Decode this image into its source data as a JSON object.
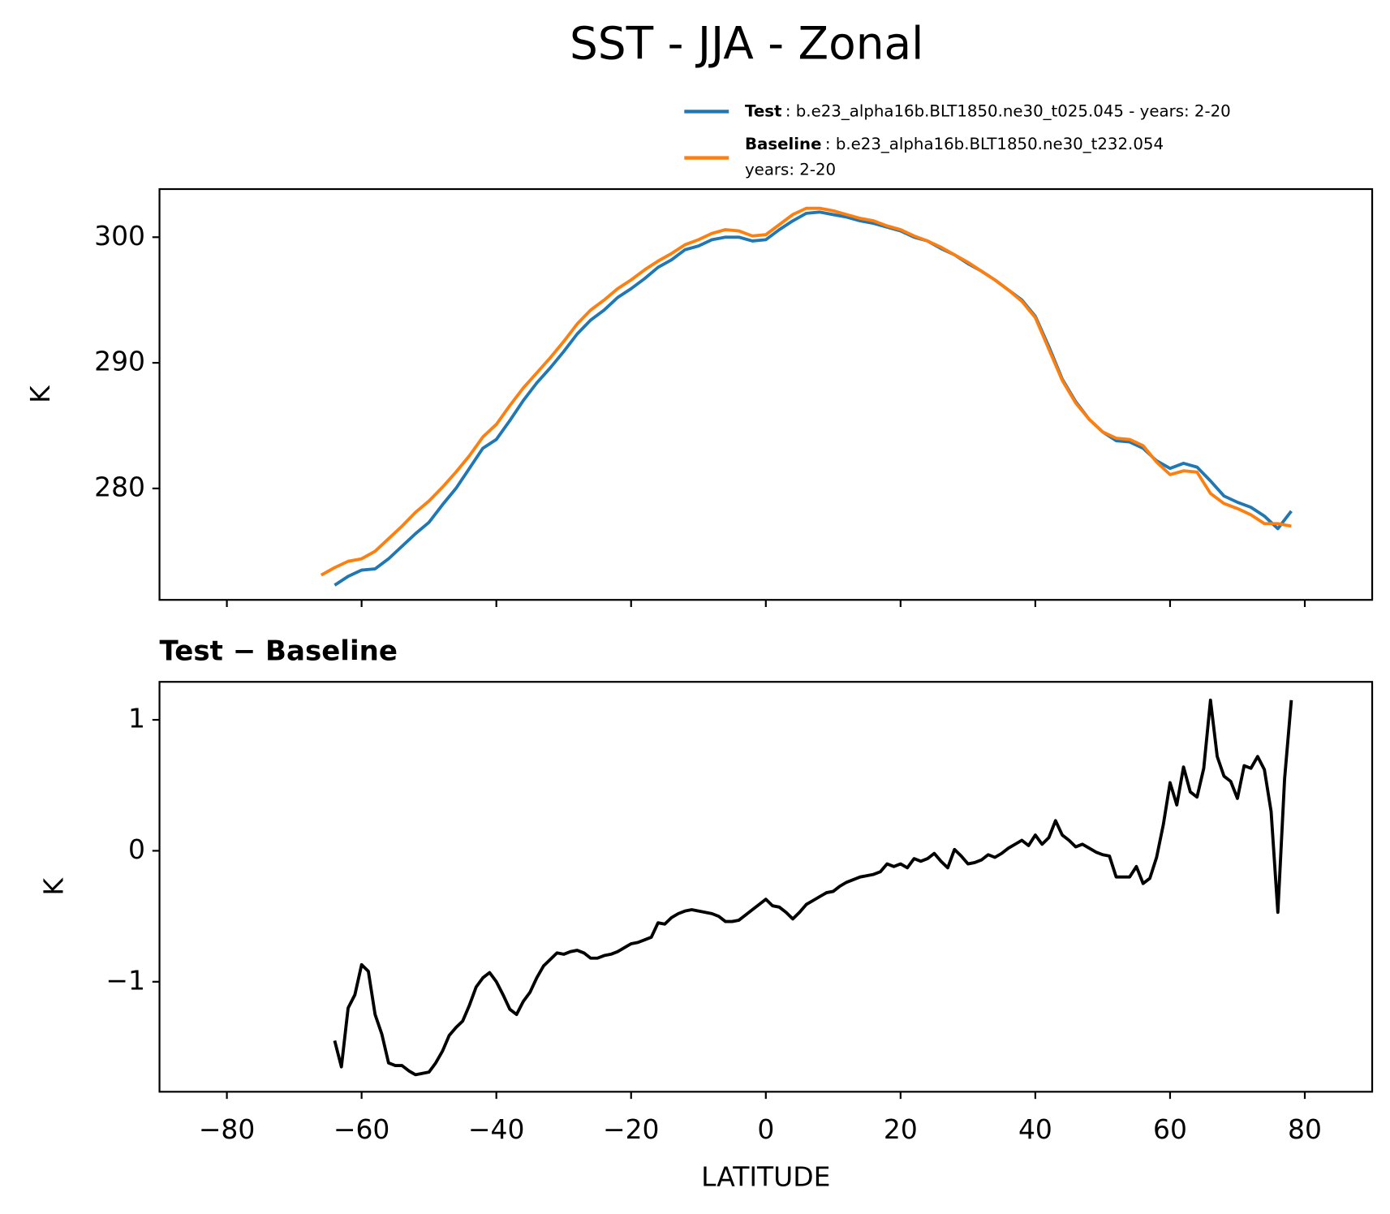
{
  "title": "SST - JJA - Zonal",
  "chart_data": [
    {
      "type": "line",
      "ylabel": "K",
      "legend": "above right",
      "show_xtick_labels": false,
      "xlim": [
        -90,
        90
      ],
      "ylim": [
        271.13,
        303.83
      ],
      "xticks": [
        -80,
        -60,
        -40,
        -20,
        0,
        20,
        40,
        60,
        80
      ],
      "yticks": [
        280,
        290,
        300
      ],
      "x": [
        -66,
        -64,
        -62,
        -60,
        -58,
        -56,
        -54,
        -52,
        -50,
        -48,
        -46,
        -44,
        -42,
        -40,
        -38,
        -36,
        -34,
        -32,
        -30,
        -28,
        -26,
        -24,
        -22,
        -20,
        -18,
        -16,
        -14,
        -12,
        -10,
        -8,
        -6,
        -4,
        -2,
        0,
        2,
        4,
        6,
        8,
        10,
        12,
        14,
        16,
        18,
        20,
        22,
        24,
        26,
        28,
        30,
        32,
        34,
        36,
        38,
        40,
        42,
        44,
        46,
        48,
        50,
        52,
        54,
        56,
        58,
        60,
        62,
        64,
        66,
        68,
        70,
        72,
        74,
        76,
        78
      ],
      "series": [
        {
          "name": "Test",
          "description": [
            ": b.e23_alpha16b.BLT1850.ne30_t025.045 - years: 2-20"
          ],
          "color": "#1f77b4",
          "values": [
            null,
            272.3,
            273.0,
            273.5,
            273.6,
            274.4,
            275.4,
            276.4,
            277.3,
            278.7,
            280.0,
            281.6,
            283.2,
            283.9,
            285.4,
            287.0,
            288.4,
            289.6,
            290.9,
            292.3,
            293.4,
            294.2,
            295.2,
            295.9,
            296.7,
            297.6,
            298.2,
            299.0,
            299.3,
            299.8,
            300.0,
            300.0,
            299.7,
            299.8,
            300.6,
            301.3,
            301.9,
            302.0,
            301.8,
            301.6,
            301.3,
            301.1,
            300.8,
            300.5,
            300.0,
            299.7,
            299.1,
            298.6,
            297.9,
            297.3,
            296.6,
            295.8,
            295.0,
            293.7,
            291.3,
            288.7,
            286.9,
            285.5,
            284.5,
            283.8,
            283.7,
            283.2,
            282.2,
            281.6,
            282.0,
            281.7,
            280.6,
            279.4,
            278.9,
            278.5,
            277.8,
            276.8,
            278.2
          ]
        },
        {
          "name": "Baseline",
          "description": [
            ": b.e23_alpha16b.BLT1850.ne30_t232.054",
            "years: 2-20"
          ],
          "color": "#ff7f0e",
          "values": [
            273.1,
            273.7,
            274.2,
            274.4,
            275.0,
            276.0,
            277.0,
            278.1,
            279.0,
            280.1,
            281.3,
            282.6,
            284.1,
            285.1,
            286.6,
            288.0,
            289.2,
            290.4,
            291.7,
            293.1,
            294.2,
            295.0,
            295.9,
            296.6,
            297.4,
            298.1,
            298.7,
            299.4,
            299.8,
            300.3,
            300.6,
            300.5,
            300.1,
            300.2,
            301.0,
            301.8,
            302.3,
            302.3,
            302.1,
            301.8,
            301.5,
            301.3,
            300.9,
            300.6,
            300.1,
            299.7,
            299.2,
            298.6,
            298.0,
            297.3,
            296.6,
            295.8,
            294.9,
            293.6,
            291.1,
            288.6,
            286.8,
            285.5,
            284.5,
            284.0,
            283.9,
            283.4,
            282.1,
            281.1,
            281.4,
            281.3,
            279.6,
            278.8,
            278.4,
            277.9,
            277.2,
            277.2,
            277.0
          ]
        }
      ]
    },
    {
      "type": "line",
      "title": "Test − Baseline",
      "ylabel": "K",
      "xlabel": "LATITUDE",
      "xlim": [
        -90,
        90
      ],
      "ylim": [
        -1.84,
        1.29
      ],
      "xticks": [
        {
          "value": -80,
          "label": "−80"
        },
        {
          "value": -60,
          "label": "−60"
        },
        {
          "value": -40,
          "label": "−40"
        },
        {
          "value": -20,
          "label": "−20"
        },
        0,
        20,
        40,
        60,
        80
      ],
      "yticks": [
        {
          "value": -1,
          "label": "−1"
        },
        0,
        1
      ],
      "x": [
        -64,
        -63,
        -62,
        -61,
        -60,
        -59,
        -58,
        -57,
        -56,
        -55,
        -54,
        -53,
        -52,
        -51,
        -50,
        -49,
        -48,
        -47,
        -46,
        -45,
        -44,
        -43,
        -42,
        -41,
        -40,
        -39,
        -38,
        -37,
        -36,
        -35,
        -34,
        -33,
        -32,
        -31,
        -30,
        -29,
        -28,
        -27,
        -26,
        -25,
        -24,
        -23,
        -22,
        -21,
        -20,
        -19,
        -18,
        -17,
        -16,
        -15,
        -14,
        -13,
        -12,
        -11,
        -10,
        -9,
        -8,
        -7,
        -6,
        -5,
        -4,
        -3,
        -2,
        -1,
        0,
        1,
        2,
        3,
        4,
        5,
        6,
        7,
        8,
        9,
        10,
        11,
        12,
        13,
        14,
        15,
        16,
        17,
        18,
        19,
        20,
        21,
        22,
        23,
        24,
        25,
        26,
        27,
        28,
        29,
        30,
        31,
        32,
        33,
        34,
        35,
        36,
        37,
        38,
        39,
        40,
        41,
        42,
        43,
        44,
        45,
        46,
        47,
        48,
        49,
        50,
        51,
        52,
        53,
        54,
        55,
        56,
        57,
        58,
        59,
        60,
        61,
        62,
        63,
        64,
        65,
        66,
        67,
        68,
        69,
        70,
        71,
        72,
        73,
        74,
        75,
        76,
        77,
        78
      ],
      "series": [
        {
          "color": "#000000",
          "values": [
            -1.45,
            -1.65,
            -1.2,
            -1.1,
            -0.87,
            -0.92,
            -1.25,
            -1.4,
            -1.62,
            -1.64,
            -1.64,
            -1.68,
            -1.71,
            -1.7,
            -1.69,
            -1.62,
            -1.53,
            -1.41,
            -1.35,
            -1.3,
            -1.18,
            -1.04,
            -0.97,
            -0.93,
            -1.0,
            -1.1,
            -1.21,
            -1.25,
            -1.15,
            -1.08,
            -0.97,
            -0.88,
            -0.83,
            -0.78,
            -0.79,
            -0.77,
            -0.76,
            -0.78,
            -0.82,
            -0.82,
            -0.8,
            -0.79,
            -0.77,
            -0.74,
            -0.71,
            -0.7,
            -0.68,
            -0.66,
            -0.55,
            -0.56,
            -0.51,
            -0.48,
            -0.46,
            -0.45,
            -0.46,
            -0.47,
            -0.48,
            -0.5,
            -0.54,
            -0.54,
            -0.53,
            -0.49,
            -0.45,
            -0.41,
            -0.37,
            -0.42,
            -0.43,
            -0.47,
            -0.52,
            -0.47,
            -0.41,
            -0.38,
            -0.35,
            -0.32,
            -0.31,
            -0.27,
            -0.24,
            -0.22,
            -0.2,
            -0.19,
            -0.18,
            -0.16,
            -0.1,
            -0.12,
            -0.1,
            -0.13,
            -0.06,
            -0.08,
            -0.06,
            -0.02,
            -0.08,
            -0.13,
            0.01,
            -0.04,
            -0.1,
            -0.09,
            -0.07,
            -0.03,
            -0.05,
            -0.02,
            0.02,
            0.05,
            0.08,
            0.04,
            0.12,
            0.05,
            0.1,
            0.23,
            0.12,
            0.08,
            0.03,
            0.05,
            0.02,
            -0.01,
            -0.03,
            -0.04,
            -0.2,
            -0.2,
            -0.2,
            -0.12,
            -0.25,
            -0.21,
            -0.05,
            0.2,
            0.52,
            0.35,
            0.64,
            0.45,
            0.41,
            0.63,
            1.15,
            0.72,
            0.57,
            0.53,
            0.4,
            0.65,
            0.63,
            0.72,
            0.62,
            0.3,
            -0.47,
            0.55,
            1.15
          ]
        }
      ]
    }
  ]
}
